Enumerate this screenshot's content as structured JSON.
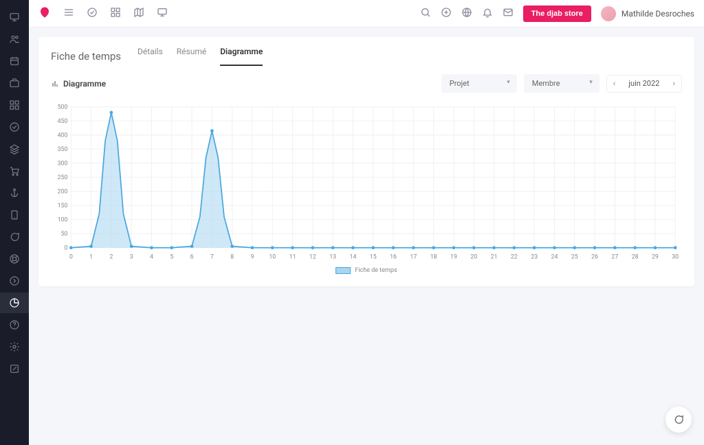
{
  "brand_color": "#e91e63",
  "topbar": {
    "store_button": "The djab store",
    "user_name": "Mathilde Desroches"
  },
  "page": {
    "title": "Fiche de temps",
    "tabs": [
      "Détails",
      "Résumé",
      "Diagramme"
    ],
    "active_tab": 2
  },
  "chart_panel": {
    "title": "Diagramme",
    "filter_project": "Projet",
    "filter_member": "Membre",
    "date_label": "juin 2022",
    "legend": "Fiche de temps"
  },
  "chart": {
    "type": "area",
    "x_label_range": [
      0,
      30
    ],
    "x_tick_step": 1,
    "ylim": [
      0,
      500
    ],
    "ytick_step": 50,
    "series_color": "#4aa8e0",
    "fill_color": "#a8d5f0",
    "fill_opacity": 0.55,
    "grid_color": "#f0f0f2",
    "background_color": "#ffffff",
    "axis_fontsize": 9,
    "data": [
      {
        "x": 0,
        "y": 0
      },
      {
        "x": 1,
        "y": 5
      },
      {
        "x": 1.4,
        "y": 120
      },
      {
        "x": 1.7,
        "y": 380
      },
      {
        "x": 2,
        "y": 480
      },
      {
        "x": 2.3,
        "y": 380
      },
      {
        "x": 2.6,
        "y": 120
      },
      {
        "x": 3,
        "y": 5
      },
      {
        "x": 4,
        "y": 0
      },
      {
        "x": 5,
        "y": 0
      },
      {
        "x": 6,
        "y": 5
      },
      {
        "x": 6.4,
        "y": 110
      },
      {
        "x": 6.7,
        "y": 320
      },
      {
        "x": 7,
        "y": 415
      },
      {
        "x": 7.3,
        "y": 320
      },
      {
        "x": 7.6,
        "y": 110
      },
      {
        "x": 8,
        "y": 5
      },
      {
        "x": 9,
        "y": 0
      },
      {
        "x": 10,
        "y": 0
      },
      {
        "x": 11,
        "y": 0
      },
      {
        "x": 12,
        "y": 0
      },
      {
        "x": 13,
        "y": 0
      },
      {
        "x": 14,
        "y": 0
      },
      {
        "x": 15,
        "y": 0
      },
      {
        "x": 16,
        "y": 0
      },
      {
        "x": 17,
        "y": 0
      },
      {
        "x": 18,
        "y": 0
      },
      {
        "x": 19,
        "y": 0
      },
      {
        "x": 20,
        "y": 0
      },
      {
        "x": 21,
        "y": 0
      },
      {
        "x": 22,
        "y": 0
      },
      {
        "x": 23,
        "y": 0
      },
      {
        "x": 24,
        "y": 0
      },
      {
        "x": 25,
        "y": 0
      },
      {
        "x": 26,
        "y": 0
      },
      {
        "x": 27,
        "y": 0
      },
      {
        "x": 28,
        "y": 0
      },
      {
        "x": 29,
        "y": 0
      },
      {
        "x": 30,
        "y": 0
      }
    ],
    "markers_x": [
      0,
      1,
      2,
      3,
      4,
      5,
      6,
      7,
      8,
      9,
      10,
      11,
      12,
      13,
      14,
      15,
      16,
      17,
      18,
      19,
      20,
      21,
      22,
      23,
      24,
      25,
      26,
      27,
      28,
      29,
      30
    ]
  },
  "sidebar_icons": [
    "monitor",
    "users",
    "calendar",
    "briefcase",
    "grid",
    "check-circle",
    "layers",
    "cart",
    "anchor",
    "tablet",
    "message",
    "life-buoy",
    "arrow-circle",
    "pie-chart",
    "help",
    "settings",
    "edit"
  ],
  "sidebar_active_index": 13
}
